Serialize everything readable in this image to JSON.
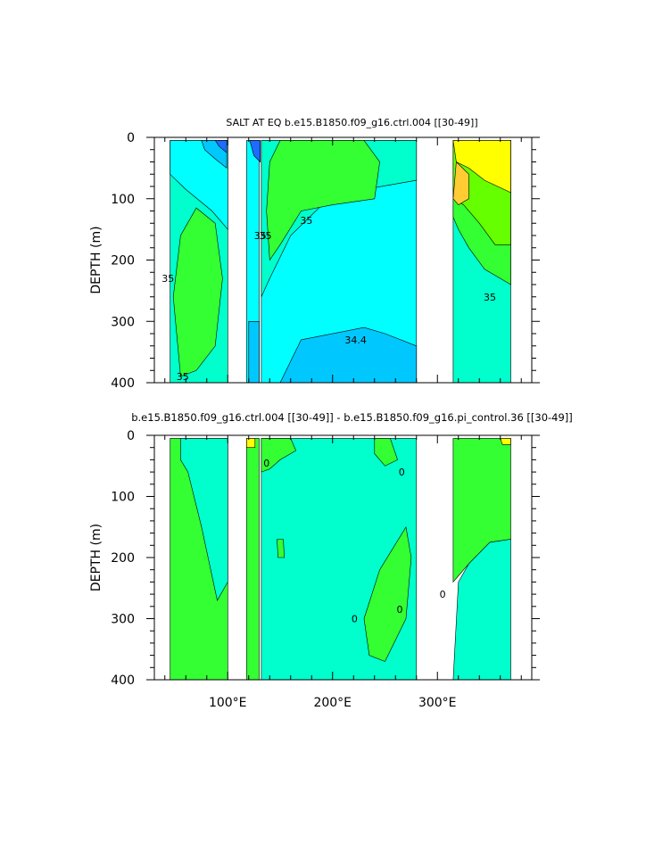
{
  "chart_data": [
    {
      "type": "heatmap",
      "title": "SALT AT EQ b.e15.B1850.f09_g16.ctrl.004 [[30-49]]",
      "ylabel": "DEPTH (m)",
      "xlabel": "",
      "xlim": [
        30,
        390
      ],
      "ylim": [
        400,
        0
      ],
      "xticks": [
        100,
        200,
        300
      ],
      "xtick_labels": [
        "",
        "",
        ""
      ],
      "yticks": [
        0,
        100,
        200,
        300,
        400
      ],
      "ytick_labels": [
        "0",
        "100",
        "200",
        "300",
        "400"
      ],
      "contour_labels": [
        {
          "text": "35",
          "x": 175,
          "y": 135
        },
        {
          "text": "35",
          "x": 136,
          "y": 160
        },
        {
          "text": "35",
          "x": 131,
          "y": 160
        },
        {
          "text": "35",
          "x": 43,
          "y": 230
        },
        {
          "text": "35",
          "x": 350,
          "y": 260
        },
        {
          "text": "34.4",
          "x": 222,
          "y": 330
        },
        {
          "text": "35",
          "x": 57,
          "y": 390
        }
      ],
      "colors": {
        "low_salt": "#1e6bff",
        "mid_low": "#00c8ff",
        "cyan": "#00ffff",
        "aqua": "#00ffcc",
        "green": "#33ff33",
        "light_green": "#66ff00",
        "yellow": "#ffff00",
        "orange": "#ffcc33"
      }
    },
    {
      "type": "heatmap",
      "title": "b.e15.B1850.f09_g16.ctrl.004 [[30-49]] - b.e15.B1850.f09_g16.pi_control.36 [[30-49]]",
      "ylabel": "DEPTH (m)",
      "xlabel": "",
      "xlim": [
        30,
        390
      ],
      "ylim": [
        400,
        0
      ],
      "xticks": [
        100,
        200,
        300
      ],
      "xtick_labels": [
        "100°E",
        "200°E",
        "300°E"
      ],
      "yticks": [
        0,
        100,
        200,
        300,
        400
      ],
      "ytick_labels": [
        "0",
        "100",
        "200",
        "300",
        "400"
      ],
      "contour_labels": [
        {
          "text": "0",
          "x": 137,
          "y": 45
        },
        {
          "text": "0",
          "x": 266,
          "y": 60
        },
        {
          "text": "0",
          "x": 305,
          "y": 260
        },
        {
          "text": "0",
          "x": 221,
          "y": 300
        },
        {
          "text": "0",
          "x": 264,
          "y": 285
        }
      ],
      "colors": {
        "aqua": "#00ffcc",
        "green": "#33ff33",
        "yellow": "#ffff00"
      }
    }
  ]
}
